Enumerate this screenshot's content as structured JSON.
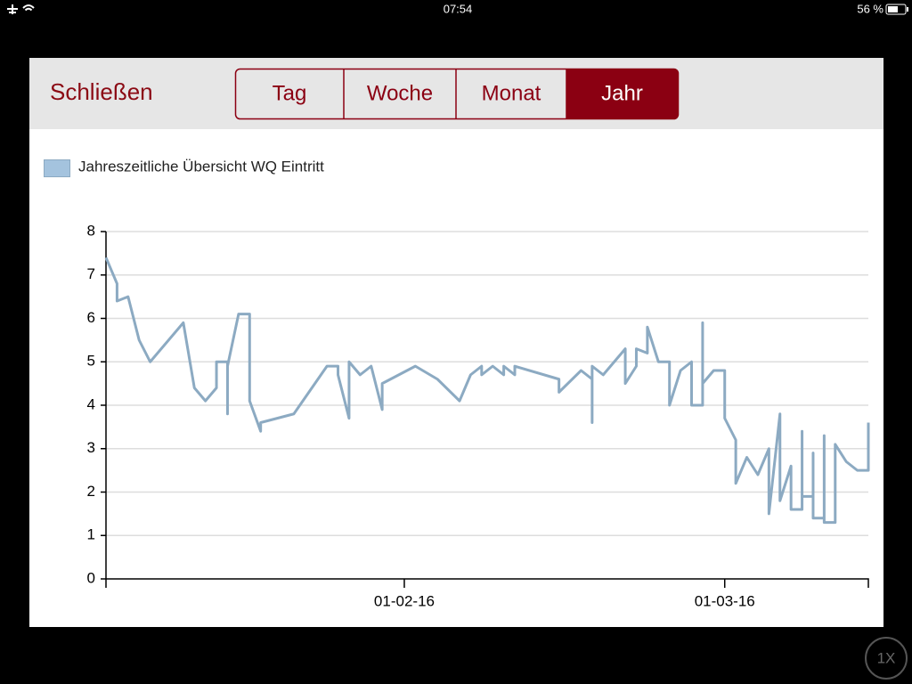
{
  "status_bar": {
    "time": "07:54",
    "battery": "56 %"
  },
  "toolbar": {
    "close": "Schließen",
    "tabs": [
      "Tag",
      "Woche",
      "Monat",
      "Jahr"
    ],
    "selected_tab": 3
  },
  "zoom_button": "1X",
  "chart_data": {
    "type": "line",
    "series": [
      {
        "name": "Jahreszeitliche Übersicht WQ Eintritt",
        "color": "#8caac2",
        "legend_fill": "#a4c3de",
        "values": [
          7.4,
          6.8,
          6.4,
          6.5,
          5.5,
          5.0,
          5.9,
          4.4,
          4.1,
          4.4,
          5.0,
          5.0,
          3.8,
          4.9,
          6.1,
          6.1,
          4.1,
          3.4,
          3.6,
          3.8,
          4.9,
          4.9,
          4.7,
          3.7,
          5.0,
          4.7,
          4.9,
          3.9,
          4.5,
          4.9,
          4.6,
          4.1,
          4.7,
          4.9,
          4.7,
          4.9,
          4.7,
          4.9,
          4.7,
          4.9,
          4.6,
          4.3,
          4.8,
          4.6,
          3.6,
          4.9,
          4.7,
          5.3,
          4.5,
          4.9,
          5.3,
          5.2,
          5.8,
          5.0,
          5.0,
          4.0,
          4.8,
          5.0,
          4.0,
          4.0,
          5.9,
          4.5,
          4.8,
          4.8,
          3.7,
          3.2,
          2.2,
          2.8,
          2.4,
          3.0,
          1.5,
          3.8,
          1.8,
          2.6,
          1.6,
          1.6,
          3.4,
          1.9,
          1.9,
          2.9,
          1.4,
          1.4,
          3.3,
          1.3,
          1.3,
          3.1,
          2.7,
          2.5,
          2.5,
          3.6
        ]
      }
    ],
    "x": [
      "2016-01-05",
      "2016-01-06",
      "2016-01-06",
      "2016-01-07",
      "2016-01-08",
      "2016-01-09",
      "2016-01-12",
      "2016-01-13",
      "2016-01-14",
      "2016-01-15",
      "2016-01-15",
      "2016-01-16",
      "2016-01-16",
      "2016-01-16",
      "2016-01-17",
      "2016-01-18",
      "2016-01-18",
      "2016-01-19",
      "2016-01-19",
      "2016-01-22",
      "2016-01-25",
      "2016-01-26",
      "2016-01-26",
      "2016-01-27",
      "2016-01-27",
      "2016-01-28",
      "2016-01-29",
      "2016-01-30",
      "2016-01-30",
      "2016-02-02",
      "2016-02-04",
      "2016-02-06",
      "2016-02-07",
      "2016-02-08",
      "2016-02-08",
      "2016-02-09",
      "2016-02-10",
      "2016-02-10",
      "2016-02-11",
      "2016-02-11",
      "2016-02-15",
      "2016-02-15",
      "2016-02-17",
      "2016-02-18",
      "2016-02-18",
      "2016-02-18",
      "2016-02-19",
      "2016-02-21",
      "2016-02-21",
      "2016-02-22",
      "2016-02-22",
      "2016-02-23",
      "2016-02-23",
      "2016-02-24",
      "2016-02-25",
      "2016-02-25",
      "2016-02-26",
      "2016-02-27",
      "2016-02-27",
      "2016-02-28",
      "2016-02-28",
      "2016-02-28",
      "2016-02-29",
      "2016-03-01",
      "2016-03-01",
      "2016-03-02",
      "2016-03-02",
      "2016-03-03",
      "2016-03-04",
      "2016-03-05",
      "2016-03-05",
      "2016-03-06",
      "2016-03-06",
      "2016-03-07",
      "2016-03-07",
      "2016-03-08",
      "2016-03-08",
      "2016-03-08",
      "2016-03-09",
      "2016-03-09",
      "2016-03-09",
      "2016-03-10",
      "2016-03-10",
      "2016-03-10",
      "2016-03-11",
      "2016-03-11",
      "2016-03-12",
      "2016-03-13",
      "2016-03-14",
      "2016-03-14"
    ],
    "xlim": [
      "2016-01-05",
      "2016-03-14"
    ],
    "xticks": [
      {
        "value": "2016-02-01",
        "label": "01-02-16"
      },
      {
        "value": "2016-03-01",
        "label": "01-03-16"
      }
    ],
    "ylim": [
      0,
      8
    ],
    "yticks": [
      0,
      1,
      2,
      3,
      4,
      5,
      6,
      7,
      8
    ],
    "grid": true
  }
}
